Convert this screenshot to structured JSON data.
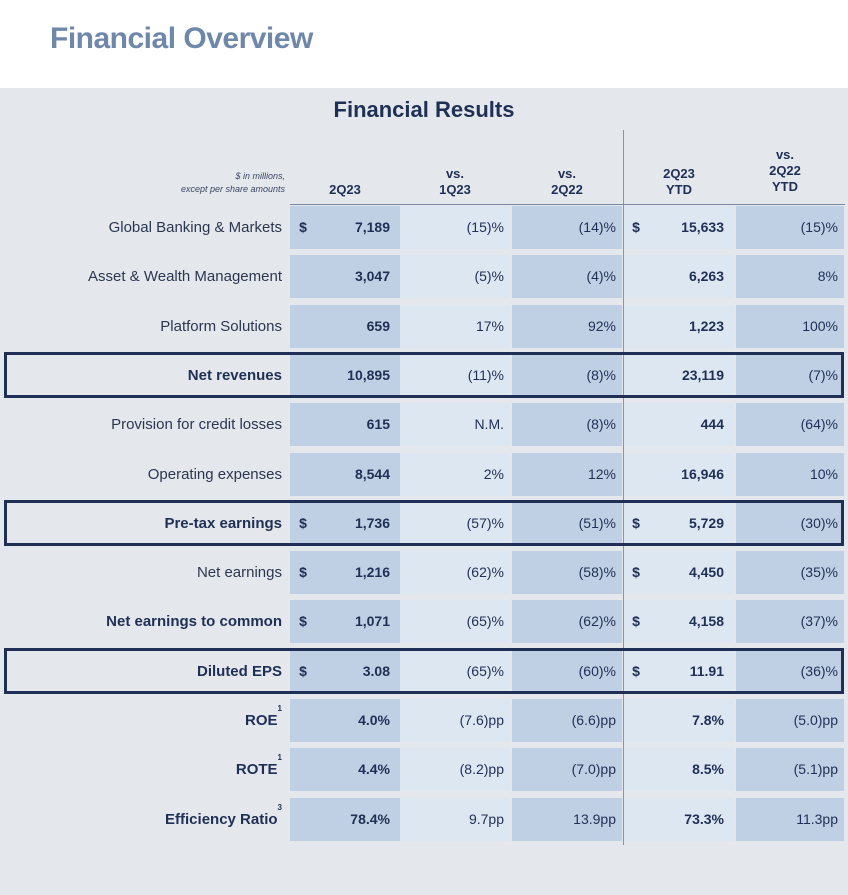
{
  "page_title": "Financial Overview",
  "table_title": "Financial Results",
  "header": {
    "note_line1": "$ in millions,",
    "note_line2": "except per share amounts",
    "col_2q23": "2Q23",
    "col_vs1q23_a": "vs.",
    "col_vs1q23_b": "1Q23",
    "col_vs2q22_a": "vs.",
    "col_vs2q22_b": "2Q22",
    "col_ytd_a": "2Q23",
    "col_ytd_b": "YTD",
    "col_ytdvs_a": "vs.",
    "col_ytdvs_b": "2Q22",
    "col_ytdvs_c": "YTD"
  },
  "rows": [
    {
      "label": "Global Banking & Markets",
      "dollar1": "$",
      "v2q23": "7,189",
      "vs1q23": "(15)%",
      "vs2q22": "(14)%",
      "dollar2": "$",
      "ytd": "15,633",
      "ytdvs": "(15)%"
    },
    {
      "label": "Asset & Wealth Management",
      "dollar1": "",
      "v2q23": "3,047",
      "vs1q23": "(5)%",
      "vs2q22": "(4)%",
      "dollar2": "",
      "ytd": "6,263",
      "ytdvs": "8%"
    },
    {
      "label": "Platform Solutions",
      "dollar1": "",
      "v2q23": "659",
      "vs1q23": "17%",
      "vs2q22": "92%",
      "dollar2": "",
      "ytd": "1,223",
      "ytdvs": "100%"
    },
    {
      "label": "Net revenues",
      "dollar1": "",
      "v2q23": "10,895",
      "vs1q23": "(11)%",
      "vs2q22": "(8)%",
      "dollar2": "",
      "ytd": "23,119",
      "ytdvs": "(7)%"
    },
    {
      "label": "Provision for credit losses",
      "dollar1": "",
      "v2q23": "615",
      "vs1q23": "N.M.",
      "vs2q22": "(8)%",
      "dollar2": "",
      "ytd": "444",
      "ytdvs": "(64)%"
    },
    {
      "label": "Operating expenses",
      "dollar1": "",
      "v2q23": "8,544",
      "vs1q23": "2%",
      "vs2q22": "12%",
      "dollar2": "",
      "ytd": "16,946",
      "ytdvs": "10%"
    },
    {
      "label": "Pre-tax earnings",
      "dollar1": "$",
      "v2q23": "1,736",
      "vs1q23": "(57)%",
      "vs2q22": "(51)%",
      "dollar2": "$",
      "ytd": "5,729",
      "ytdvs": "(30)%"
    },
    {
      "label": "Net earnings",
      "dollar1": "$",
      "v2q23": "1,216",
      "vs1q23": "(62)%",
      "vs2q22": "(58)%",
      "dollar2": "$",
      "ytd": "4,450",
      "ytdvs": "(35)%"
    },
    {
      "label": "Net earnings to common",
      "dollar1": "$",
      "v2q23": "1,071",
      "vs1q23": "(65)%",
      "vs2q22": "(62)%",
      "dollar2": "$",
      "ytd": "4,158",
      "ytdvs": "(37)%"
    },
    {
      "label": "Diluted EPS",
      "dollar1": "$",
      "v2q23": "3.08",
      "vs1q23": "(65)%",
      "vs2q22": "(60)%",
      "dollar2": "$",
      "ytd": "11.91",
      "ytdvs": "(36)%"
    },
    {
      "label": "ROE",
      "sup": "1",
      "dollar1": "",
      "v2q23": "4.0%",
      "vs1q23": "(7.6)pp",
      "vs2q22": "(6.6)pp",
      "dollar2": "",
      "ytd": "7.8%",
      "ytdvs": "(5.0)pp"
    },
    {
      "label": "ROTE",
      "sup": "1",
      "dollar1": "",
      "v2q23": "4.4%",
      "vs1q23": "(8.2)pp",
      "vs2q22": "(7.0)pp",
      "dollar2": "",
      "ytd": "8.5%",
      "ytdvs": "(5.1)pp"
    },
    {
      "label": "Efficiency Ratio",
      "sup": "3",
      "dollar1": "",
      "v2q23": "78.4%",
      "vs1q23": "9.7pp",
      "vs2q22": "13.9pp",
      "dollar2": "",
      "ytd": "73.3%",
      "ytdvs": "11.3pp"
    }
  ],
  "colors": {
    "title": "#6f87a8",
    "navy": "#1f2f55",
    "band_dark": "#bfd0e4",
    "band_light": "#dde7f1",
    "panel": "#e4e8ec"
  }
}
